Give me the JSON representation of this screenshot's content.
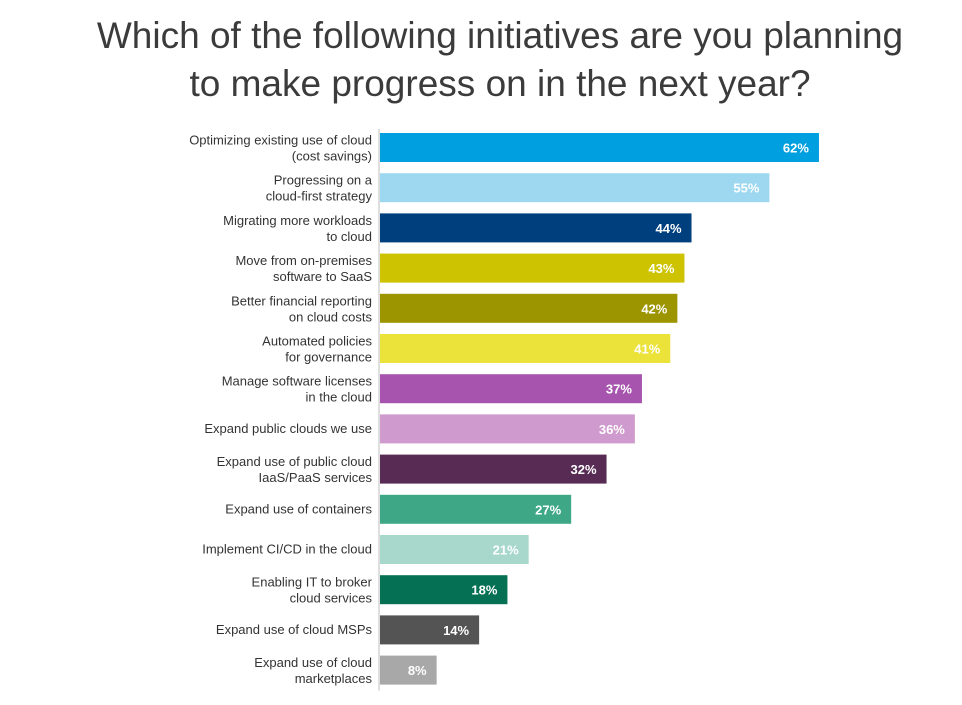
{
  "title_lines": [
    "Which of the following initiatives are you planning",
    "to make progress on in the next year?"
  ],
  "chart_data": {
    "type": "bar",
    "orientation": "horizontal",
    "title": "Which of the following initiatives are you planning to make progress on in the next year?",
    "categories": [
      [
        "Optimizing existing use of cloud",
        "(cost savings)"
      ],
      [
        "Progressing on a",
        "cloud-first strategy"
      ],
      [
        "Migrating more workloads",
        "to cloud"
      ],
      [
        "Move from on-premises",
        "software to SaaS"
      ],
      [
        "Better financial reporting",
        "on cloud costs"
      ],
      [
        "Automated policies",
        "for  governance"
      ],
      [
        "Manage software licenses",
        "in the cloud"
      ],
      [
        "Expand public clouds we use"
      ],
      [
        "Expand use of public cloud",
        "IaaS/PaaS services"
      ],
      [
        "Expand use of containers"
      ],
      [
        "Implement CI/CD in the cloud"
      ],
      [
        "Enabling IT to broker",
        "cloud services"
      ],
      [
        "Expand use of cloud MSPs"
      ],
      [
        "Expand use of cloud",
        "marketplaces"
      ]
    ],
    "values": [
      62,
      55,
      44,
      43,
      42,
      41,
      37,
      36,
      32,
      27,
      21,
      18,
      14,
      8
    ],
    "value_labels": [
      "62%",
      "55%",
      "44%",
      "43%",
      "42%",
      "41%",
      "37%",
      "36%",
      "32%",
      "27%",
      "21%",
      "18%",
      "14%",
      "8%"
    ],
    "colors": [
      "#009fdf",
      "#9dd8f0",
      "#003f7d",
      "#cdc300",
      "#9d9500",
      "#ebe23a",
      "#a654ad",
      "#cf9acd",
      "#582b55",
      "#3ea886",
      "#a8d7cb",
      "#067055",
      "#545454",
      "#a8a8a8"
    ],
    "xlim": [
      0,
      100
    ],
    "grid": false,
    "legend": "none"
  }
}
